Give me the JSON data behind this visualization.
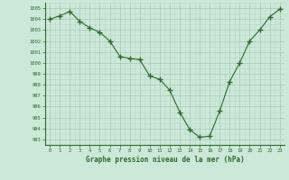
{
  "hours": [
    0,
    1,
    2,
    3,
    4,
    5,
    6,
    7,
    8,
    9,
    10,
    11,
    12,
    13,
    14,
    15,
    16,
    17,
    18,
    19,
    20,
    21,
    22,
    23
  ],
  "pressure": [
    1004.0,
    1004.3,
    1004.7,
    1003.8,
    1003.2,
    1002.8,
    1002.0,
    1000.6,
    1000.4,
    1000.3,
    998.8,
    998.5,
    997.5,
    995.5,
    993.9,
    993.2,
    993.3,
    995.6,
    998.3,
    1000.0,
    1002.0,
    1003.0,
    1004.2,
    1004.9
  ],
  "line_color": "#2d6a2d",
  "marker_color": "#2d6a2d",
  "bg_color": "#cce8d8",
  "grid_major_color": "#a8c8b8",
  "grid_minor_color": "#b8d8c8",
  "ylabel_ticks": [
    993,
    994,
    995,
    996,
    997,
    998,
    999,
    1000,
    1001,
    1002,
    1003,
    1004,
    1005
  ],
  "ylim": [
    992.5,
    1005.5
  ],
  "xlim": [
    -0.5,
    23.5
  ],
  "xlabel": "Graphe pression niveau de la mer (hPa)",
  "xlabel_color": "#2d6a2d",
  "tick_color": "#2d6a2d",
  "axis_color": "#2d6a2d",
  "fig_width": 3.2,
  "fig_height": 2.0,
  "dpi": 100
}
